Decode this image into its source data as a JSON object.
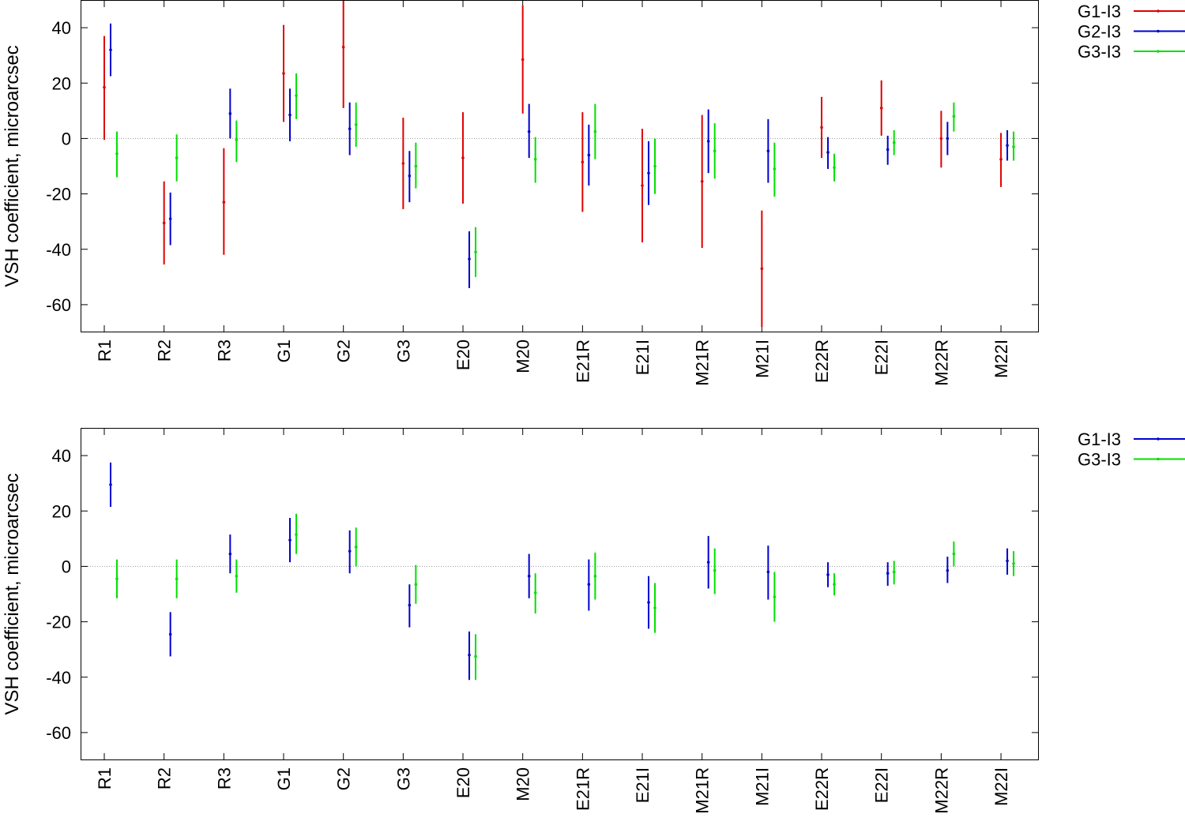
{
  "chart_data": [
    {
      "type": "errorbar",
      "ylabel": "VSH coefficient, microarcsec",
      "ylim": [
        -70,
        50
      ],
      "yticks": [
        40,
        20,
        0,
        -20,
        -40,
        -60
      ],
      "zero_line": true,
      "legend_position": "top-right (outside plot)",
      "categories": [
        "R1",
        "R2",
        "R3",
        "G1",
        "G2",
        "G3",
        "E20",
        "M20",
        "E21R",
        "E21I",
        "M21R",
        "M21I",
        "E22R",
        "E22I",
        "M22R",
        "M22I"
      ],
      "series": [
        {
          "name": "G1-I3",
          "color": "#e00000",
          "values": [
            18.5,
            -30.5,
            -23,
            23.5,
            33,
            -9,
            -7,
            28.5,
            -8.5,
            -17,
            -15.5,
            -47,
            4,
            11,
            0,
            -7.5
          ],
          "lower": [
            -0.5,
            -45.5,
            -42,
            6,
            11,
            -25.5,
            -23.5,
            9,
            -26.5,
            -37.5,
            -39.5,
            -68,
            -7,
            1,
            -10.5,
            -17.5
          ],
          "upper": [
            37,
            -15.5,
            -3.5,
            41,
            50,
            7.5,
            9.5,
            48,
            9.5,
            3.5,
            8.5,
            -26,
            15,
            21,
            10,
            2
          ]
        },
        {
          "name": "G2-I3",
          "color": "#0000d0",
          "values": [
            32,
            -29,
            9,
            8.5,
            3.5,
            -13.5,
            -43.5,
            2.5,
            -6,
            -12.5,
            -1,
            -4.5,
            -5,
            -4,
            0,
            -2.5
          ],
          "lower": [
            22.5,
            -38.5,
            0,
            -1,
            -6,
            -23,
            -54,
            -7,
            -17,
            -24,
            -12.5,
            -16,
            -11,
            -9.5,
            -6,
            -8
          ],
          "upper": [
            41.5,
            -19.5,
            18,
            18,
            13,
            -4.5,
            -33.5,
            12.5,
            5,
            -1,
            10.5,
            7,
            0.5,
            1,
            6,
            3
          ]
        },
        {
          "name": "G3-I3",
          "color": "#00e000",
          "values": [
            -5.5,
            -7,
            -0.5,
            15.5,
            5,
            -10,
            -41,
            -7.5,
            2.5,
            -10,
            -4.5,
            -11,
            -10.5,
            -1.5,
            8,
            -3
          ],
          "lower": [
            -14,
            -15.5,
            -8.5,
            7,
            -3,
            -18,
            -50,
            -16,
            -7.5,
            -20,
            -14.5,
            -21,
            -15.5,
            -6,
            2.5,
            -8
          ],
          "upper": [
            2.5,
            1.5,
            6.5,
            23.5,
            13,
            -1.5,
            -32,
            0.5,
            12.5,
            0,
            5.5,
            -1.5,
            -5.5,
            3,
            13,
            2.5
          ]
        }
      ]
    },
    {
      "type": "errorbar",
      "ylabel": "VSH coefficient, microarcsec",
      "ylim": [
        -70,
        50
      ],
      "yticks": [
        40,
        20,
        0,
        -20,
        -40,
        -60
      ],
      "zero_line": true,
      "legend_position": "top-right (outside plot)",
      "categories": [
        "R1",
        "R2",
        "R3",
        "G1",
        "G2",
        "G3",
        "E20",
        "M20",
        "E21R",
        "E21I",
        "M21R",
        "M21I",
        "E22R",
        "E22I",
        "M22R",
        "M22I"
      ],
      "series": [
        {
          "name": "G1-I3",
          "color": "#0000d0",
          "values": [
            29.5,
            -24.5,
            4.5,
            9.5,
            5.5,
            -14,
            -32,
            -3.5,
            -6.5,
            -13,
            1.5,
            -2,
            -3,
            -2.5,
            -1.5,
            2
          ],
          "lower": [
            21.5,
            -32.5,
            -2.5,
            1.5,
            -2.5,
            -22,
            -41,
            -11.5,
            -16,
            -22.5,
            -8,
            -12,
            -7.5,
            -7,
            -6,
            -3
          ],
          "upper": [
            37.5,
            -16.5,
            11.5,
            17.5,
            13,
            -6.5,
            -23.5,
            4.5,
            2.5,
            -3.5,
            11,
            7.5,
            1.5,
            1.5,
            3.5,
            6.5
          ]
        },
        {
          "name": "G3-I3",
          "color": "#00e000",
          "values": [
            -4.5,
            -4.5,
            -3.5,
            11.5,
            7,
            -6.5,
            -32.5,
            -9.5,
            -3.5,
            -15,
            -1.5,
            -11,
            -6.5,
            -2,
            4.5,
            1
          ],
          "lower": [
            -11.5,
            -11.5,
            -9.5,
            4.5,
            0,
            -13.5,
            -41,
            -17,
            -12,
            -24,
            -10,
            -20,
            -10.5,
            -6.5,
            0,
            -3.5
          ],
          "upper": [
            2.5,
            2.5,
            2.5,
            19,
            14,
            0.5,
            -24.5,
            -2.5,
            5,
            -6,
            6.5,
            -2,
            -2.5,
            2,
            9,
            5.5
          ]
        }
      ]
    }
  ]
}
